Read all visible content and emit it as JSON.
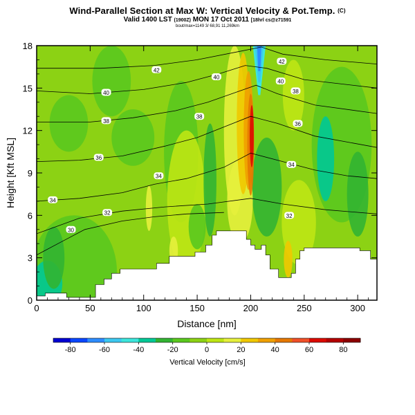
{
  "header": {
    "title": "Wind-Parallel Section at Max W: Vertical Velocity & Pot.Temp.",
    "copyright": "(C)",
    "valid_main": "Valid 1400 LST",
    "valid_utc": "(1900Z)",
    "valid_date": "MON 17 Oct 2011",
    "valid_tail": "[18hrl cs@z71591",
    "subline": "bout/max=1149 3/ 68,91 11,269km"
  },
  "chart_data": {
    "type": "heatmap",
    "title": "Wind-Parallel Section at Max W: Vertical Velocity & Pot.Temp.",
    "xlabel": "Distance [nm]",
    "ylabel": "Height [Kft MSL]",
    "xlim": [
      0,
      318
    ],
    "ylim": [
      0,
      18
    ],
    "x_ticks": [
      0,
      50,
      100,
      150,
      200,
      250,
      300
    ],
    "y_ticks": [
      0,
      3,
      6,
      9,
      12,
      15,
      18
    ],
    "field": "Vertical Velocity",
    "colorbar": {
      "label": "Vertical Velocity [cm/s]",
      "ticks": [
        "-80",
        "-60",
        "-40",
        "-20",
        "0",
        "20",
        "40",
        "60",
        "80"
      ],
      "range": [
        -90,
        90
      ],
      "colors": [
        "#0000d2",
        "#0a46ff",
        "#2d8cff",
        "#3cc8f0",
        "#3ce6dc",
        "#00c896",
        "#32b432",
        "#5ac81e",
        "#8cd214",
        "#bee614",
        "#e6f03c",
        "#f0c800",
        "#f0a000",
        "#e67800",
        "#f05028",
        "#dc0a00",
        "#b40000",
        "#8c0000"
      ]
    },
    "terrain": [
      [
        0,
        0.3
      ],
      [
        8,
        0.3
      ],
      [
        8,
        0.5
      ],
      [
        28,
        0.5
      ],
      [
        28,
        0.2
      ],
      [
        55,
        0.2
      ],
      [
        55,
        1.1
      ],
      [
        63,
        1.1
      ],
      [
        63,
        1.5
      ],
      [
        70,
        1.5
      ],
      [
        70,
        1.9
      ],
      [
        78,
        1.9
      ],
      [
        78,
        2.2
      ],
      [
        112,
        2.2
      ],
      [
        112,
        2.6
      ],
      [
        124,
        2.6
      ],
      [
        124,
        3.1
      ],
      [
        148,
        3.1
      ],
      [
        148,
        3.4
      ],
      [
        158,
        3.4
      ],
      [
        158,
        3.9
      ],
      [
        164,
        3.9
      ],
      [
        164,
        4.6
      ],
      [
        168,
        4.6
      ],
      [
        168,
        4.9
      ],
      [
        196,
        4.9
      ],
      [
        196,
        4.3
      ],
      [
        200,
        4.3
      ],
      [
        200,
        3.9
      ],
      [
        204,
        3.9
      ],
      [
        204,
        3.6
      ],
      [
        210,
        3.6
      ],
      [
        210,
        3.9
      ],
      [
        214,
        3.9
      ],
      [
        214,
        3.2
      ],
      [
        218,
        3.2
      ],
      [
        218,
        2.2
      ],
      [
        226,
        2.2
      ],
      [
        226,
        1.6
      ],
      [
        238,
        1.6
      ],
      [
        238,
        1.9
      ],
      [
        242,
        1.9
      ],
      [
        242,
        2.9
      ],
      [
        246,
        2.9
      ],
      [
        246,
        3.5
      ],
      [
        250,
        3.5
      ],
      [
        250,
        3.7
      ],
      [
        256,
        3.7
      ],
      [
        256,
        3.7
      ],
      [
        302,
        3.7
      ],
      [
        302,
        3.5
      ],
      [
        312,
        3.5
      ],
      [
        312,
        2.9
      ],
      [
        318,
        2.9
      ]
    ],
    "updraft_core_x": 201,
    "downdraft_top_x": 208,
    "isentropes": [
      {
        "label": "30",
        "points": [
          [
            0,
            3.2
          ],
          [
            20,
            4.0
          ],
          [
            45,
            5.0
          ],
          [
            80,
            5.6
          ],
          [
            110,
            5.9
          ],
          [
            140,
            6.1
          ],
          [
            175,
            6.2
          ]
        ],
        "label_at": [
          32,
          5.0
        ]
      },
      {
        "label": "32",
        "points": [
          [
            0,
            4.7
          ],
          [
            40,
            5.8
          ],
          [
            80,
            6.3
          ],
          [
            120,
            6.6
          ],
          [
            160,
            6.8
          ],
          [
            200,
            7.2
          ],
          [
            230,
            6.8
          ],
          [
            270,
            6.4
          ],
          [
            318,
            6.1
          ]
        ],
        "label_at": [
          66,
          6.2
        ]
      },
      {
        "label": "32",
        "points": [
          [
            0,
            4.7
          ],
          [
            40,
            5.8
          ],
          [
            80,
            6.3
          ],
          [
            120,
            6.6
          ],
          [
            160,
            6.8
          ],
          [
            200,
            7.2
          ],
          [
            230,
            6.8
          ],
          [
            270,
            6.4
          ],
          [
            318,
            6.1
          ]
        ],
        "label_at": [
          236,
          6.0
        ]
      },
      {
        "label": "34",
        "points": [
          [
            0,
            7.0
          ],
          [
            40,
            7.2
          ],
          [
            80,
            7.6
          ],
          [
            110,
            8.2
          ],
          [
            140,
            8.6
          ],
          [
            175,
            9.4
          ],
          [
            200,
            10.4
          ],
          [
            230,
            9.8
          ],
          [
            260,
            9.2
          ],
          [
            290,
            8.8
          ],
          [
            318,
            8.6
          ]
        ],
        "label_at": [
          15,
          7.1
        ]
      },
      {
        "label": "34",
        "points": [
          [
            0,
            7.0
          ],
          [
            40,
            7.2
          ],
          [
            80,
            7.6
          ],
          [
            110,
            8.2
          ],
          [
            140,
            8.6
          ],
          [
            175,
            9.4
          ],
          [
            200,
            10.4
          ],
          [
            230,
            9.8
          ],
          [
            260,
            9.2
          ],
          [
            290,
            8.8
          ],
          [
            318,
            8.6
          ]
        ],
        "label_at": [
          238,
          9.6
        ]
      },
      {
        "label": "34",
        "points": [
          [
            0,
            7.0
          ],
          [
            40,
            7.2
          ],
          [
            80,
            7.6
          ],
          [
            110,
            8.2
          ],
          [
            140,
            8.6
          ],
          [
            175,
            9.4
          ],
          [
            200,
            10.4
          ],
          [
            230,
            9.8
          ],
          [
            260,
            9.2
          ],
          [
            290,
            8.8
          ],
          [
            318,
            8.6
          ]
        ],
        "label_at": [
          114,
          8.8
        ]
      },
      {
        "label": "36",
        "points": [
          [
            0,
            9.8
          ],
          [
            40,
            9.9
          ],
          [
            80,
            10.2
          ],
          [
            120,
            10.9
          ],
          [
            150,
            11.5
          ],
          [
            180,
            12.4
          ],
          [
            200,
            13.0
          ],
          [
            225,
            12.5
          ],
          [
            260,
            11.6
          ],
          [
            318,
            10.8
          ]
        ],
        "label_at": [
          58,
          10.1
        ]
      },
      {
        "label": "36",
        "points": [
          [
            0,
            9.8
          ],
          [
            40,
            9.9
          ],
          [
            80,
            10.2
          ],
          [
            120,
            10.9
          ],
          [
            150,
            11.5
          ],
          [
            180,
            12.4
          ],
          [
            200,
            13.0
          ],
          [
            225,
            12.5
          ],
          [
            260,
            11.6
          ],
          [
            318,
            10.8
          ]
        ],
        "label_at": [
          244,
          12.5
        ]
      },
      {
        "label": "38",
        "points": [
          [
            0,
            12.6
          ],
          [
            50,
            12.6
          ],
          [
            90,
            12.9
          ],
          [
            130,
            13.4
          ],
          [
            160,
            14.0
          ],
          [
            190,
            14.8
          ],
          [
            205,
            15.2
          ],
          [
            225,
            14.6
          ],
          [
            260,
            13.8
          ],
          [
            318,
            13.2
          ]
        ],
        "label_at": [
          65,
          12.7
        ]
      },
      {
        "label": "38",
        "points": [
          [
            0,
            12.6
          ],
          [
            50,
            12.6
          ],
          [
            90,
            12.9
          ],
          [
            130,
            13.4
          ],
          [
            160,
            14.0
          ],
          [
            190,
            14.8
          ],
          [
            205,
            15.2
          ],
          [
            225,
            14.6
          ],
          [
            260,
            13.8
          ],
          [
            318,
            13.2
          ]
        ],
        "label_at": [
          152,
          13.0
        ]
      },
      {
        "label": "38",
        "points": [
          [
            0,
            12.6
          ],
          [
            50,
            12.6
          ],
          [
            90,
            12.9
          ],
          [
            130,
            13.4
          ],
          [
            160,
            14.0
          ],
          [
            190,
            14.8
          ],
          [
            205,
            15.2
          ],
          [
            225,
            14.6
          ],
          [
            260,
            13.8
          ],
          [
            318,
            13.2
          ]
        ],
        "label_at": [
          242,
          14.8
        ]
      },
      {
        "label": "40",
        "points": [
          [
            0,
            14.8
          ],
          [
            50,
            14.6
          ],
          [
            100,
            14.9
          ],
          [
            140,
            15.4
          ],
          [
            170,
            16.0
          ],
          [
            195,
            16.6
          ],
          [
            215,
            16.4
          ],
          [
            250,
            15.6
          ],
          [
            318,
            15.0
          ]
        ],
        "label_at": [
          65,
          14.7
        ]
      },
      {
        "label": "40",
        "points": [
          [
            0,
            14.8
          ],
          [
            50,
            14.6
          ],
          [
            100,
            14.9
          ],
          [
            140,
            15.4
          ],
          [
            170,
            16.0
          ],
          [
            195,
            16.6
          ],
          [
            215,
            16.4
          ],
          [
            250,
            15.6
          ],
          [
            318,
            15.0
          ]
        ],
        "label_at": [
          228,
          15.5
        ]
      },
      {
        "label": "40",
        "points": [
          [
            0,
            14.8
          ],
          [
            50,
            14.6
          ],
          [
            100,
            14.9
          ],
          [
            140,
            15.4
          ],
          [
            170,
            16.0
          ],
          [
            195,
            16.6
          ],
          [
            215,
            16.4
          ],
          [
            250,
            15.6
          ],
          [
            318,
            15.0
          ]
        ],
        "label_at": [
          168,
          15.8
        ]
      },
      {
        "label": "42",
        "points": [
          [
            0,
            16.4
          ],
          [
            60,
            16.4
          ],
          [
            110,
            16.6
          ],
          [
            150,
            17.0
          ],
          [
            190,
            17.6
          ],
          [
            210,
            17.9
          ],
          [
            230,
            17.4
          ],
          [
            270,
            17.0
          ],
          [
            318,
            16.7
          ]
        ],
        "label_at": [
          112,
          16.3
        ]
      },
      {
        "label": "42",
        "points": [
          [
            0,
            16.4
          ],
          [
            60,
            16.4
          ],
          [
            110,
            16.6
          ],
          [
            150,
            17.0
          ],
          [
            190,
            17.6
          ],
          [
            210,
            17.9
          ],
          [
            230,
            17.4
          ],
          [
            270,
            17.0
          ],
          [
            318,
            16.7
          ]
        ],
        "label_at": [
          229,
          16.9
        ]
      }
    ]
  }
}
